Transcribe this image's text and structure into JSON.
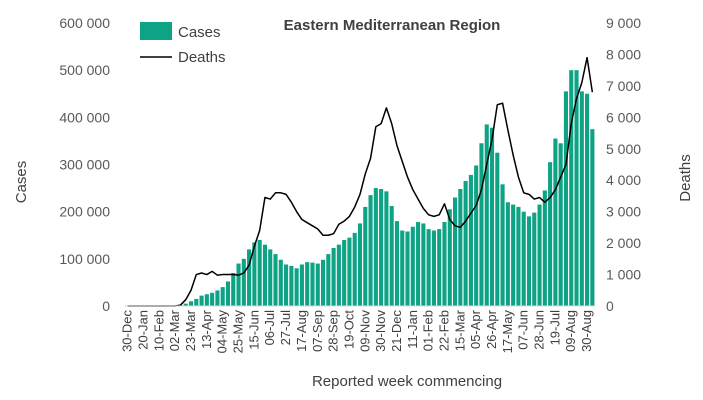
{
  "chart_data": {
    "type": "bar",
    "title": "Eastern Mediterranean Region",
    "xlabel": "Reported week commencing",
    "ylabel": "Cases",
    "y2label": "Deaths",
    "ylim": [
      0,
      600000
    ],
    "y2lim": [
      0,
      9000
    ],
    "yticks": [
      "0",
      "100 000",
      "200 000",
      "300 000",
      "400 000",
      "500 000",
      "600 000"
    ],
    "y2ticks": [
      "0",
      "1 000",
      "2 000",
      "3 000",
      "4 000",
      "5 000",
      "6 000",
      "7 000",
      "8 000",
      "9 000"
    ],
    "xtick_labels": [
      "30-Dec",
      "20-Jan",
      "10-Feb",
      "02-Mar",
      "23-Mar",
      "13-Apr",
      "04-May",
      "25-May",
      "15-Jun",
      "06-Jul",
      "27-Jul",
      "17-Aug",
      "07-Sep",
      "28-Sep",
      "19-Oct",
      "09-Nov",
      "30-Nov",
      "21-Dec",
      "11-Jan",
      "01-Feb",
      "22-Feb",
      "15-Mar",
      "05-Apr",
      "26-Apr",
      "17-May",
      "07-Jun",
      "28-Jun",
      "19-Jul",
      "09-Aug",
      "30-Aug"
    ],
    "legend": {
      "position": "top-left",
      "entries": [
        "Cases",
        "Deaths"
      ]
    },
    "colors": {
      "cases": "#0fa386",
      "deaths": "#000000"
    },
    "series": [
      {
        "name": "Cases",
        "type": "bar",
        "axis": "left",
        "values": [
          0,
          0,
          0,
          0,
          0,
          0,
          0,
          0,
          0,
          0,
          2000,
          5000,
          10000,
          15000,
          22000,
          25000,
          28000,
          33000,
          40000,
          52000,
          70000,
          90000,
          100000,
          120000,
          135000,
          140000,
          130000,
          120000,
          110000,
          98000,
          88000,
          85000,
          80000,
          88000,
          93000,
          92000,
          90000,
          98000,
          110000,
          123000,
          130000,
          140000,
          145000,
          155000,
          175000,
          210000,
          235000,
          250000,
          248000,
          243000,
          212000,
          180000,
          160000,
          158000,
          168000,
          178000,
          175000,
          163000,
          160000,
          163000,
          178000,
          205000,
          230000,
          248000,
          265000,
          278000,
          298000,
          345000,
          385000,
          378000,
          325000,
          258000,
          220000,
          215000,
          210000,
          200000,
          190000,
          198000,
          215000,
          245000,
          305000,
          355000,
          345000,
          455000,
          500000,
          500000,
          455000,
          450000,
          375000
        ]
      },
      {
        "name": "Deaths",
        "type": "line",
        "axis": "right",
        "values": [
          0,
          0,
          0,
          0,
          0,
          0,
          0,
          0,
          0,
          0,
          30,
          200,
          500,
          1000,
          1050,
          1000,
          1100,
          980,
          1000,
          1000,
          1000,
          980,
          1050,
          1300,
          1900,
          2400,
          3450,
          3400,
          3600,
          3600,
          3550,
          3300,
          3000,
          2750,
          2650,
          2550,
          2450,
          2250,
          2250,
          2300,
          2600,
          2700,
          2850,
          3150,
          3550,
          4200,
          4700,
          5700,
          5800,
          6300,
          5800,
          5100,
          4600,
          4100,
          3700,
          3400,
          3100,
          2900,
          2850,
          2900,
          3250,
          2750,
          2550,
          2500,
          2700,
          2950,
          3200,
          3700,
          4500,
          5300,
          6400,
          6450,
          5600,
          4800,
          4100,
          3600,
          3550,
          3400,
          3450,
          3300,
          3450,
          3700,
          4100,
          4500,
          5800,
          6600,
          7100,
          7900,
          6800
        ]
      }
    ]
  }
}
